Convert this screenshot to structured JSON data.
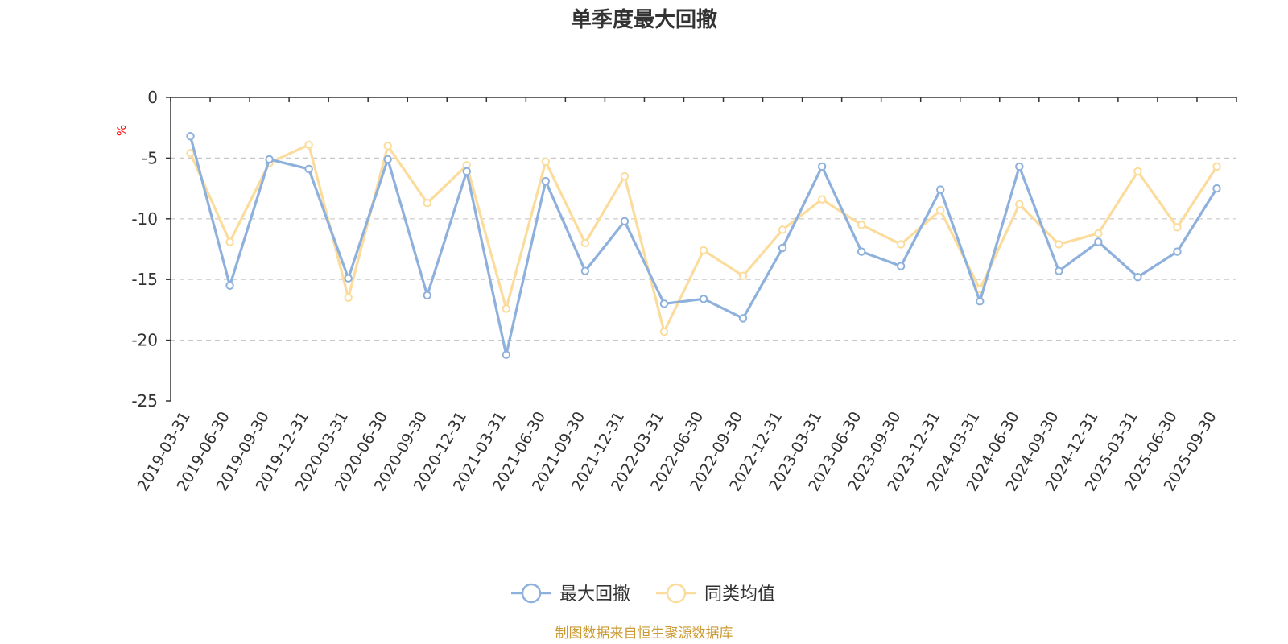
{
  "chart_data": {
    "type": "line",
    "title": "单季度最大回撤",
    "ylabel": "%",
    "ylim": [
      -25,
      0
    ],
    "yticks": [
      0,
      -5,
      -10,
      -15,
      -20,
      -25
    ],
    "grid": "horizontal-dashed",
    "categories": [
      "2019-03-31",
      "2019-06-30",
      "2019-09-30",
      "2019-12-31",
      "2020-03-31",
      "2020-06-30",
      "2020-09-30",
      "2020-12-31",
      "2021-03-31",
      "2021-06-30",
      "2021-09-30",
      "2021-12-31",
      "2022-03-31",
      "2022-06-30",
      "2022-09-30",
      "2022-12-31",
      "2023-03-31",
      "2023-06-30",
      "2023-09-30",
      "2023-12-31",
      "2024-03-31",
      "2024-06-30",
      "2024-09-30",
      "2024-12-31",
      "2025-03-31",
      "2025-06-30",
      "2025-09-30"
    ],
    "series": [
      {
        "name": "最大回撤",
        "color": "#8eb0dc",
        "values": [
          -3.2,
          -15.5,
          -5.1,
          -5.9,
          -14.9,
          -5.1,
          -16.3,
          -6.1,
          -21.2,
          -6.9,
          -14.3,
          -10.2,
          -17.0,
          -16.6,
          -18.2,
          -12.4,
          -5.7,
          -12.7,
          -13.9,
          -7.6,
          -16.8,
          -5.7,
          -14.3,
          -11.9,
          -14.8,
          -12.7,
          -7.5
        ]
      },
      {
        "name": "同类均值",
        "color": "#fcdc9c",
        "values": [
          -4.6,
          -11.9,
          -5.4,
          -3.9,
          -16.5,
          -4.0,
          -8.7,
          -5.6,
          -17.4,
          -5.3,
          -12.0,
          -6.5,
          -19.3,
          -12.6,
          -14.7,
          -10.9,
          -8.4,
          -10.5,
          -12.1,
          -9.3,
          -15.8,
          -8.8,
          -12.1,
          -11.2,
          -6.1,
          -10.7,
          -5.7
        ]
      }
    ],
    "legend_position": "bottom-center",
    "unit_color": "#ff0000"
  },
  "footer": {
    "source": "制图数据来自恒生聚源数据库",
    "source_color": "#cc9a33"
  }
}
